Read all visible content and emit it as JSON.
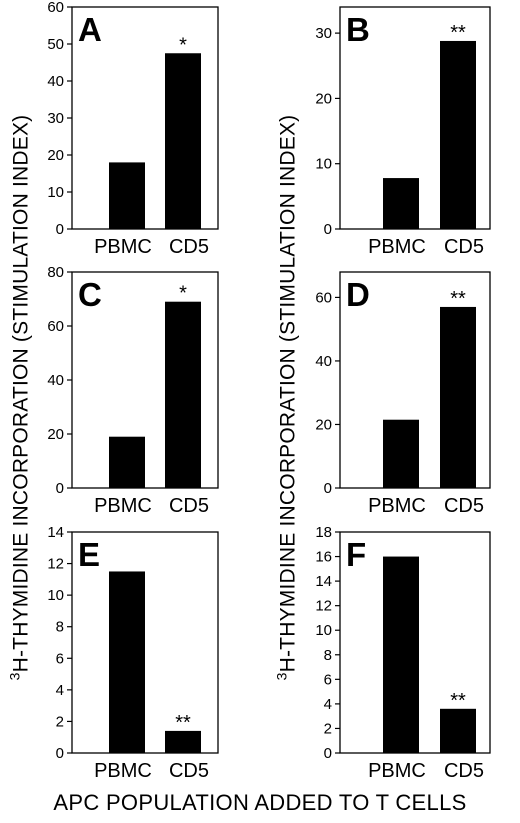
{
  "figure": {
    "ylabel_left": {
      "sup": "3",
      "text": "H-THYMIDINE INCORPORATION (STIMULATION INDEX)"
    },
    "ylabel_right": {
      "sup": "3",
      "text": "H-THYMIDINE INCORPORATION (STIMULATION INDEX)"
    },
    "xlabel": "APC POPULATION ADDED TO T CELLS"
  },
  "chart_data": [
    {
      "type": "bar",
      "panel": "A",
      "categories": [
        "PBMC",
        "CD5"
      ],
      "values": [
        18,
        47.5
      ],
      "annotations": [
        "",
        "*"
      ],
      "ylim": [
        0,
        60
      ],
      "yticks": [
        0,
        10,
        20,
        30,
        40,
        50,
        60
      ]
    },
    {
      "type": "bar",
      "panel": "B",
      "categories": [
        "PBMC",
        "CD5"
      ],
      "values": [
        7.8,
        28.8
      ],
      "annotations": [
        "",
        "**"
      ],
      "ylim": [
        0,
        34
      ],
      "yticks": [
        0,
        10,
        20,
        30
      ]
    },
    {
      "type": "bar",
      "panel": "C",
      "categories": [
        "PBMC",
        "CD5"
      ],
      "values": [
        19,
        69
      ],
      "annotations": [
        "",
        "*"
      ],
      "ylim": [
        0,
        80
      ],
      "yticks": [
        0,
        20,
        40,
        60,
        80
      ]
    },
    {
      "type": "bar",
      "panel": "D",
      "categories": [
        "PBMC",
        "CD5"
      ],
      "values": [
        21.5,
        57
      ],
      "annotations": [
        "",
        "**"
      ],
      "ylim": [
        0,
        68
      ],
      "yticks": [
        0,
        20,
        40,
        60
      ]
    },
    {
      "type": "bar",
      "panel": "E",
      "categories": [
        "PBMC",
        "CD5"
      ],
      "values": [
        11.5,
        1.4
      ],
      "annotations": [
        "",
        "**"
      ],
      "ylim": [
        0,
        14
      ],
      "yticks": [
        0,
        2,
        4,
        6,
        8,
        10,
        12,
        14
      ]
    },
    {
      "type": "bar",
      "panel": "F",
      "categories": [
        "PBMC",
        "CD5"
      ],
      "values": [
        16,
        3.6
      ],
      "annotations": [
        "",
        "**"
      ],
      "ylim": [
        0,
        18
      ],
      "yticks": [
        0,
        2,
        4,
        6,
        8,
        10,
        12,
        14,
        16,
        18
      ]
    }
  ]
}
